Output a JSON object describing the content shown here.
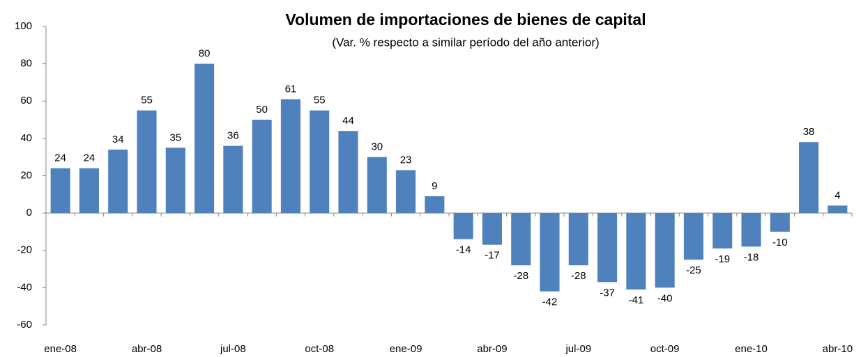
{
  "chart_data": {
    "type": "bar",
    "title": "Volumen de importaciones de bienes de capital",
    "subtitle": "(Var. % respecto a similar período del año anterior)",
    "categories": [
      "ene-08",
      null,
      null,
      "abr-08",
      null,
      null,
      "jul-08",
      null,
      null,
      "oct-08",
      null,
      null,
      "ene-09",
      null,
      null,
      "abr-09",
      null,
      null,
      "jul-09",
      null,
      null,
      "oct-09",
      null,
      null,
      "ene-10",
      null,
      null,
      "abr-10"
    ],
    "values": [
      24,
      24,
      34,
      55,
      35,
      80,
      36,
      50,
      61,
      55,
      44,
      30,
      23,
      9,
      -14,
      -17,
      -28,
      -42,
      -28,
      -37,
      -41,
      -40,
      -25,
      -19,
      -18,
      -10,
      38,
      4
    ],
    "color": "#4f81bd",
    "ylim": [
      -60,
      100
    ],
    "yticks": [
      -60,
      -40,
      -20,
      0,
      20,
      40,
      60,
      80,
      100
    ],
    "grid": false
  }
}
